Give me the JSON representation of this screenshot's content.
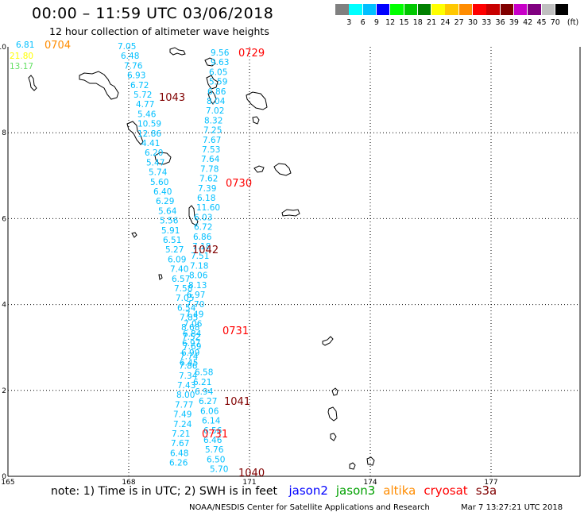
{
  "header": {
    "title": "00:00 – 11:59 UTC 03/06/2018",
    "subtitle": "12 hour collection of altimeter wave heights"
  },
  "colorbar": {
    "unit": "(ft)",
    "colors": [
      "#808080",
      "#00ffff",
      "#00bfff",
      "#0000ff",
      "#00ff00",
      "#00c800",
      "#008000",
      "#ffff00",
      "#ffc800",
      "#ff8c00",
      "#ff0000",
      "#c80000",
      "#800000",
      "#c800c8",
      "#800080",
      "#c0c0c0",
      "#000000"
    ],
    "labels": [
      "3",
      "6",
      "9",
      "12",
      "15",
      "18",
      "21",
      "24",
      "27",
      "30",
      "33",
      "36",
      "39",
      "42",
      "45",
      "70"
    ]
  },
  "axes": {
    "y_ticks": [
      "10",
      "8",
      "6",
      "4",
      "2",
      "0"
    ],
    "x_ticks": [
      "165",
      "168",
      "171",
      "174",
      "177"
    ]
  },
  "time_labels": [
    {
      "text": "0704",
      "color": "#ff8c00"
    },
    {
      "text": "0729",
      "color": "#ff0000"
    },
    {
      "text": "1043",
      "color": "#800000"
    },
    {
      "text": "0730",
      "color": "#ff0000"
    },
    {
      "text": "1042",
      "color": "#800000"
    },
    {
      "text": "0731",
      "color": "#ff0000"
    },
    {
      "text": "1041",
      "color": "#800000"
    },
    {
      "text": "0731",
      "color": "#ff0000"
    },
    {
      "text": "1040",
      "color": "#800000"
    }
  ],
  "corner_values": [
    {
      "text": "6.81",
      "color": "#00bfff"
    },
    {
      "text": "21.80",
      "color": "#ffff00"
    },
    {
      "text": "13.17",
      "color": "#66e066"
    }
  ],
  "track_left": {
    "color": "#00bfff",
    "values": [
      "7.05",
      "6.48",
      "7.76",
      "6.93",
      "6.72",
      "5.72",
      "4.77",
      "5.46",
      "10.59",
      "12.86",
      "4.41",
      "6.20",
      "5.47",
      "5.74",
      "5.60",
      "6.40",
      "6.29",
      "5.64",
      "5.56",
      "5.91",
      "6.51",
      "5.27",
      "6.09",
      "7.40",
      "6.57",
      "7.58",
      "7.05",
      "6.54",
      "7.85",
      "8.68",
      "7.52",
      "7.69",
      "7.74",
      "7.86",
      "7.34",
      "7.43",
      "8.00",
      "7.77",
      "7.49",
      "7.24",
      "7.21",
      "7.67",
      "6.48",
      "6.26"
    ]
  },
  "track_right": {
    "color": "#00bfff",
    "values": [
      "9.56",
      "9.63",
      "6.05",
      "5.59",
      "6.86",
      "8.04",
      "7.02",
      "8.32",
      "7.25",
      "7.67",
      "7.53",
      "7.64",
      "7.78",
      "7.62",
      "7.39",
      "6.18",
      "11.60",
      "6.03",
      "6.72",
      "6.86",
      "7.18",
      "7.51",
      "7.18",
      "8.06",
      "8.13",
      "6.97",
      "7.70",
      "7.49",
      "7.06",
      "6.84",
      "6.97",
      "6.99",
      "6.45",
      "6.58",
      "6.21",
      "6.94",
      "6.27",
      "6.06",
      "6.14",
      "6.56",
      "6.46",
      "5.76",
      "6.50",
      "5.70"
    ]
  },
  "note": {
    "text": "note: 1) Time is in UTC; 2) SWH is in feet",
    "satellites": [
      {
        "name": "jason2",
        "color": "#0000ff"
      },
      {
        "name": "jason3",
        "color": "#00a000"
      },
      {
        "name": "altika",
        "color": "#ff8c00"
      },
      {
        "name": "cryosat",
        "color": "#ff0000"
      },
      {
        "name": "s3a",
        "color": "#800000"
      }
    ]
  },
  "footer": {
    "credit": "NOAA/NESDIS Center for Satellite Applications and Research",
    "timestamp": "Mar  7 13:27:21 UTC 2018"
  }
}
